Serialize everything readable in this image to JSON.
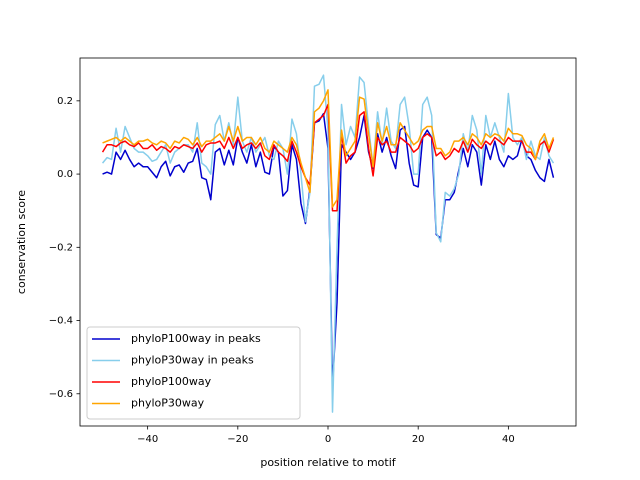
{
  "chart_data": {
    "type": "line",
    "x_label": "position relative to motif",
    "y_label": "conservation score",
    "x": [
      -50,
      -49,
      -48,
      -47,
      -46,
      -45,
      -44,
      -43,
      -42,
      -41,
      -40,
      -39,
      -38,
      -37,
      -36,
      -35,
      -34,
      -33,
      -32,
      -31,
      -30,
      -29,
      -28,
      -27,
      -26,
      -25,
      -24,
      -23,
      -22,
      -21,
      -20,
      -19,
      -18,
      -17,
      -16,
      -15,
      -14,
      -13,
      -12,
      -11,
      -10,
      -9,
      -8,
      -7,
      -6,
      -5,
      -4,
      -3,
      -2,
      -1,
      0,
      1,
      2,
      3,
      4,
      5,
      6,
      7,
      8,
      9,
      10,
      11,
      12,
      13,
      14,
      15,
      16,
      17,
      18,
      19,
      20,
      21,
      22,
      23,
      24,
      25,
      26,
      27,
      28,
      29,
      30,
      31,
      32,
      33,
      34,
      35,
      36,
      37,
      38,
      39,
      40,
      41,
      42,
      43,
      44,
      45,
      46,
      47,
      48,
      49,
      50
    ],
    "series": [
      {
        "name": "phyloP100way in peaks",
        "color": "#0000cd",
        "values": [
          0.0,
          0.005,
          0.0,
          0.06,
          0.04,
          0.065,
          0.04,
          0.02,
          0.03,
          0.02,
          0.02,
          0.005,
          -0.01,
          0.02,
          0.035,
          -0.005,
          0.02,
          0.025,
          0.005,
          0.03,
          0.035,
          0.07,
          -0.01,
          -0.015,
          -0.07,
          0.06,
          0.07,
          0.025,
          0.065,
          0.025,
          0.1,
          0.06,
          0.03,
          0.08,
          0.02,
          0.06,
          0.005,
          0.0,
          0.075,
          0.06,
          -0.06,
          -0.045,
          0.08,
          0.04,
          -0.08,
          -0.135,
          -0.04,
          0.14,
          0.145,
          0.165,
          0.07,
          -0.58,
          -0.35,
          0.08,
          0.06,
          0.04,
          0.06,
          0.1,
          0.16,
          0.06,
          0.015,
          0.11,
          0.06,
          0.1,
          0.05,
          0.015,
          0.12,
          0.13,
          0.03,
          -0.03,
          -0.035,
          0.1,
          0.12,
          0.1,
          -0.165,
          -0.175,
          -0.07,
          -0.07,
          -0.05,
          0.01,
          0.07,
          0.02,
          0.08,
          0.06,
          -0.03,
          0.08,
          0.04,
          0.09,
          0.04,
          0.02,
          0.05,
          0.04,
          0.05,
          0.095,
          0.05,
          0.04,
          0.01,
          -0.01,
          -0.02,
          0.04,
          -0.01
        ]
      },
      {
        "name": "phyloP30way in peaks",
        "color": "#87ceeb",
        "values": [
          0.03,
          0.045,
          0.04,
          0.125,
          0.06,
          0.13,
          0.1,
          0.07,
          0.06,
          0.06,
          0.05,
          0.035,
          0.04,
          0.06,
          0.08,
          0.03,
          0.06,
          0.07,
          0.08,
          0.08,
          0.06,
          0.14,
          0.03,
          0.02,
          0.0,
          0.135,
          0.16,
          0.09,
          0.14,
          0.08,
          0.21,
          0.09,
          0.06,
          0.1,
          0.06,
          0.08,
          0.1,
          0.05,
          0.04,
          0.09,
          0.07,
          0.0,
          0.15,
          0.11,
          0.0,
          -0.13,
          -0.05,
          0.24,
          0.245,
          0.27,
          0.12,
          -0.65,
          -0.2,
          0.19,
          0.08,
          0.13,
          0.1,
          0.265,
          0.25,
          0.13,
          0.02,
          0.17,
          0.08,
          0.18,
          0.09,
          0.07,
          0.19,
          0.21,
          0.13,
          0.0,
          0.0,
          0.19,
          0.21,
          0.16,
          -0.16,
          -0.185,
          -0.05,
          -0.06,
          -0.04,
          0.0,
          0.11,
          0.06,
          0.16,
          0.12,
          0.0,
          0.16,
          0.1,
          0.14,
          0.1,
          0.06,
          0.22,
          0.1,
          0.08,
          0.1,
          0.04,
          0.09,
          0.05,
          0.04,
          0.1,
          0.05,
          0.03
        ]
      },
      {
        "name": "phyloP100way",
        "color": "#ff0000",
        "values": [
          0.06,
          0.08,
          0.08,
          0.075,
          0.085,
          0.09,
          0.08,
          0.075,
          0.085,
          0.07,
          0.07,
          0.08,
          0.065,
          0.075,
          0.07,
          0.06,
          0.075,
          0.07,
          0.08,
          0.075,
          0.07,
          0.085,
          0.06,
          0.08,
          0.085,
          0.085,
          0.09,
          0.07,
          0.1,
          0.07,
          0.1,
          0.07,
          0.08,
          0.085,
          0.07,
          0.085,
          0.05,
          0.04,
          0.08,
          0.06,
          0.05,
          0.035,
          0.09,
          0.06,
          0.02,
          -0.01,
          -0.03,
          0.14,
          0.15,
          0.16,
          0.19,
          -0.1,
          -0.1,
          0.11,
          0.03,
          0.05,
          0.06,
          0.16,
          0.17,
          0.07,
          -0.005,
          0.1,
          0.08,
          0.09,
          0.06,
          0.06,
          0.1,
          0.09,
          0.08,
          0.06,
          0.07,
          0.1,
          0.11,
          0.1,
          0.05,
          0.06,
          0.04,
          0.05,
          0.07,
          0.06,
          0.09,
          0.06,
          0.095,
          0.08,
          0.07,
          0.09,
          0.08,
          0.1,
          0.09,
          0.08,
          0.1,
          0.09,
          0.09,
          0.09,
          0.06,
          0.06,
          0.04,
          0.08,
          0.09,
          0.06,
          0.095
        ]
      },
      {
        "name": "phyloP30way",
        "color": "#ffa500",
        "values": [
          0.085,
          0.09,
          0.095,
          0.1,
          0.09,
          0.1,
          0.09,
          0.08,
          0.09,
          0.09,
          0.095,
          0.085,
          0.08,
          0.09,
          0.085,
          0.07,
          0.09,
          0.085,
          0.1,
          0.095,
          0.08,
          0.1,
          0.075,
          0.09,
          0.09,
          0.1,
          0.11,
          0.09,
          0.13,
          0.09,
          0.13,
          0.09,
          0.1,
          0.1,
          0.08,
          0.1,
          0.07,
          0.06,
          0.09,
          0.08,
          0.07,
          0.06,
          0.1,
          0.08,
          0.03,
          -0.01,
          -0.05,
          0.17,
          0.18,
          0.2,
          0.23,
          -0.09,
          -0.07,
          0.12,
          0.05,
          0.07,
          0.09,
          0.21,
          0.205,
          0.11,
          0.02,
          0.14,
          0.09,
          0.13,
          0.08,
          0.08,
          0.14,
          0.12,
          0.1,
          0.08,
          0.09,
          0.12,
          0.13,
          0.13,
          0.07,
          0.07,
          0.05,
          0.06,
          0.09,
          0.09,
          0.1,
          0.08,
          0.11,
          0.1,
          0.08,
          0.11,
          0.1,
          0.11,
          0.105,
          0.09,
          0.125,
          0.11,
          0.11,
          0.105,
          0.08,
          0.07,
          0.04,
          0.09,
          0.11,
          0.07,
          0.1
        ]
      }
    ],
    "xlim": [
      -55,
      55
    ],
    "xticks": [
      {
        "value": -40,
        "label": "−40"
      },
      {
        "value": -20,
        "label": "−20"
      },
      0,
      20,
      40
    ],
    "ylim": [
      -0.688,
      0.317
    ],
    "yticks": [
      {
        "value": -0.6,
        "label": "−0.6"
      },
      {
        "value": -0.4,
        "label": "−0.4"
      },
      {
        "value": -0.2,
        "label": "−0.2"
      },
      {
        "value": 0.0,
        "label": "0.0"
      },
      {
        "value": 0.2,
        "label": "0.2"
      }
    ],
    "legend": "lower left",
    "grid": false
  }
}
